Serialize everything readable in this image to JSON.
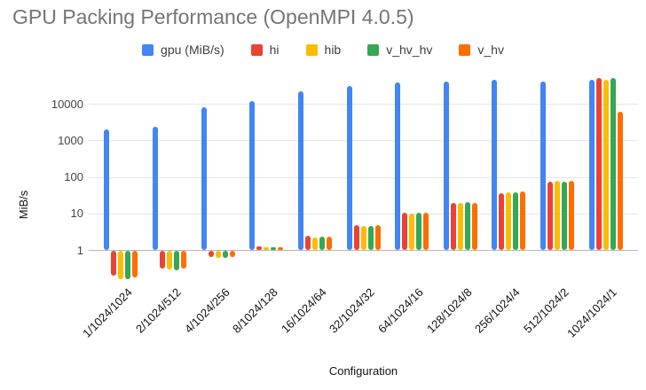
{
  "chart_data": {
    "type": "bar",
    "title": "GPU Packing Performance (OpenMPI 4.0.5)",
    "xlabel": "Configuration",
    "ylabel": "MiB/s",
    "y_scale": "log",
    "y_ticks": [
      1,
      10,
      100,
      1000,
      10000
    ],
    "ylim": [
      0.1,
      100000
    ],
    "grid": true,
    "legend_position": "top",
    "categories": [
      "1/1024/1024",
      "2/1024/512",
      "4/1024/256",
      "8/1024/128",
      "16/1024/64",
      "32/1024/32",
      "64/1024/16",
      "128/1024/8",
      "256/1024/4",
      "512/1024/2",
      "1024/1024/1"
    ],
    "series": [
      {
        "name": "gpu (MiB/s)",
        "color": "#4285F4",
        "values": [
          2100,
          2500,
          8300,
          12300,
          22500,
          32000,
          40000,
          42000,
          46000,
          42000,
          47000
        ]
      },
      {
        "name": "hi",
        "color": "#EA4335",
        "values": [
          0.2,
          0.32,
          0.65,
          1.3,
          2.5,
          4.8,
          10.5,
          20,
          37,
          75,
          54000
        ]
      },
      {
        "name": "hib",
        "color": "#FBBC04",
        "values": [
          0.16,
          0.3,
          0.62,
          1.25,
          2.3,
          4.6,
          10,
          20,
          38,
          80,
          48000
        ]
      },
      {
        "name": "v_hv_hv",
        "color": "#34A853",
        "values": [
          0.16,
          0.29,
          0.63,
          1.25,
          2.4,
          4.7,
          10.5,
          21,
          38,
          78,
          54000
        ]
      },
      {
        "name": "v_hv",
        "color": "#FF6D01",
        "values": [
          0.18,
          0.32,
          0.65,
          1.2,
          2.4,
          4.9,
          10.5,
          20,
          40,
          80,
          6300
        ]
      }
    ]
  }
}
